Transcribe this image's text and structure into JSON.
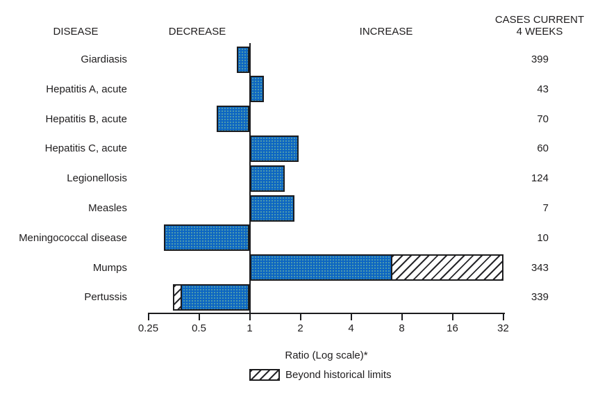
{
  "headers": {
    "disease": "DISEASE",
    "decrease": "DECREASE",
    "increase": "INCREASE",
    "cases_line1": "CASES CURRENT",
    "cases_line2": "4 WEEKS"
  },
  "chart_data": {
    "type": "bar",
    "orientation": "horizontal",
    "x_scale": "log2",
    "x_range": [
      0.25,
      32
    ],
    "x_ticks": [
      0.25,
      0.5,
      1,
      2,
      4,
      8,
      16,
      32
    ],
    "xlabel": "Ratio (Log scale)*",
    "baseline_ratio": 1,
    "bar_color": "#0d66c2",
    "legend": [
      {
        "label": "Beyond historical limits",
        "style": "hatched"
      }
    ],
    "rows": [
      {
        "disease": "Giardiasis",
        "ratio": 0.84,
        "historical_limit": null,
        "cases": 399
      },
      {
        "disease": "Hepatitis A, acute",
        "ratio": 1.21,
        "historical_limit": null,
        "cases": 43
      },
      {
        "disease": "Hepatitis B, acute",
        "ratio": 0.64,
        "historical_limit": null,
        "cases": 70
      },
      {
        "disease": "Hepatitis C, acute",
        "ratio": 1.95,
        "historical_limit": null,
        "cases": 60
      },
      {
        "disease": "Legionellosis",
        "ratio": 1.62,
        "historical_limit": null,
        "cases": 124
      },
      {
        "disease": "Measles",
        "ratio": 1.85,
        "historical_limit": null,
        "cases": 7
      },
      {
        "disease": "Meningococcal disease",
        "ratio": 0.31,
        "historical_limit": null,
        "cases": 10
      },
      {
        "disease": "Mumps",
        "ratio": 32,
        "historical_limit": 6.9,
        "cases": 343
      },
      {
        "disease": "Pertussis",
        "ratio": 0.35,
        "historical_limit": 0.39,
        "cases": 339
      }
    ]
  }
}
